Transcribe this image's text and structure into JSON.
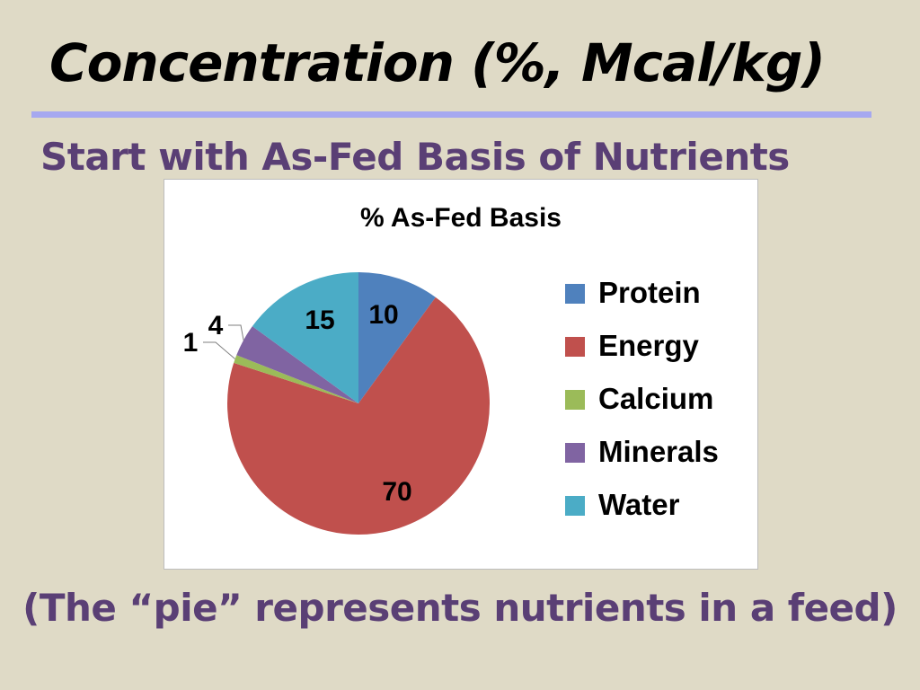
{
  "slide": {
    "title": "Concentration (%, Mcal/kg)",
    "subtitle": "Start with As-Fed Basis of Nutrients",
    "caption": "(The “pie” represents nutrients in a feed)"
  },
  "colors": {
    "background": "#dfdac6",
    "title_rule": "#a6a8f0",
    "subtitle_text": "#5a3f75"
  },
  "chart_data": {
    "type": "pie",
    "title": "% As-Fed Basis",
    "categories": [
      "Protein",
      "Energy",
      "Calcium",
      "Minerals",
      "Water"
    ],
    "values": [
      10,
      70,
      1,
      4,
      15
    ],
    "colors": [
      "#4f81bd",
      "#c0504d",
      "#9bbb59",
      "#8064a2",
      "#4bacc6"
    ],
    "data_labels": [
      "10",
      "70",
      "1",
      "4",
      "15"
    ],
    "legend_position": "right",
    "start_angle": "12 o'clock",
    "direction": "clockwise"
  }
}
